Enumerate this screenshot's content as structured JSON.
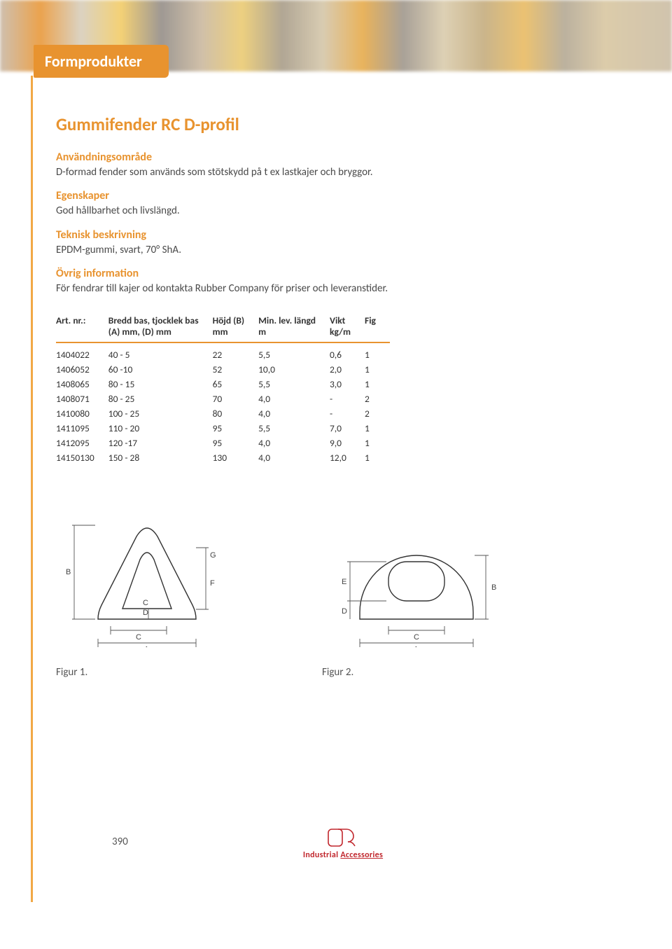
{
  "section_tab": "Formprodukter",
  "title": "Gummifender RC D-profil",
  "blocks": [
    {
      "heading": "Användningsområde",
      "body": "D-formad fender som används som stötskydd på t ex lastkajer och bryggor."
    },
    {
      "heading": "Egenskaper",
      "body": "God hållbarhet och livslängd."
    },
    {
      "heading": "Teknisk beskrivning",
      "body": "EPDM-gummi, svart, 70° ShA."
    },
    {
      "heading": "Övrig information",
      "body": "För fendrar till kajer od kontakta Rubber Company för priser och leveranstider."
    }
  ],
  "table": {
    "columns": [
      {
        "l1": "Art. nr.:",
        "l2": ""
      },
      {
        "l1": "Bredd bas, tjocklek bas",
        "l2": "(A) mm, (D) mm"
      },
      {
        "l1": "Höjd (B)",
        "l2": "mm"
      },
      {
        "l1": "Min. lev. längd",
        "l2": "m"
      },
      {
        "l1": "Vikt",
        "l2": "kg/m"
      },
      {
        "l1": "Fig",
        "l2": ""
      }
    ],
    "rows": [
      [
        "1404022",
        "40 - 5",
        "22",
        "5,5",
        "0,6",
        "1"
      ],
      [
        "1406052",
        "60 -10",
        "52",
        "10,0",
        "2,0",
        "1"
      ],
      [
        "1408065",
        "80 - 15",
        "65",
        "5,5",
        "3,0",
        "1"
      ],
      [
        "1408071",
        "80 - 25",
        "70",
        "4,0",
        "-",
        "2"
      ],
      [
        "1410080",
        "100 - 25",
        "80",
        "4,0",
        "-",
        "2"
      ],
      [
        "1411095",
        "110 - 20",
        "95",
        "5,5",
        "7,0",
        "1"
      ],
      [
        "1412095",
        "120 -17",
        "95",
        "4,0",
        "9,0",
        "1"
      ],
      [
        "14150130",
        "150 - 28",
        "130",
        "4,0",
        "12,0",
        "1"
      ]
    ]
  },
  "figures": {
    "f1_caption": "Figur 1.",
    "f2_caption": "Figur 2."
  },
  "footer": {
    "page": "390",
    "brand1": "Industrial",
    "brand2": "Accessories"
  },
  "colors": {
    "accent": "#e8932f"
  }
}
